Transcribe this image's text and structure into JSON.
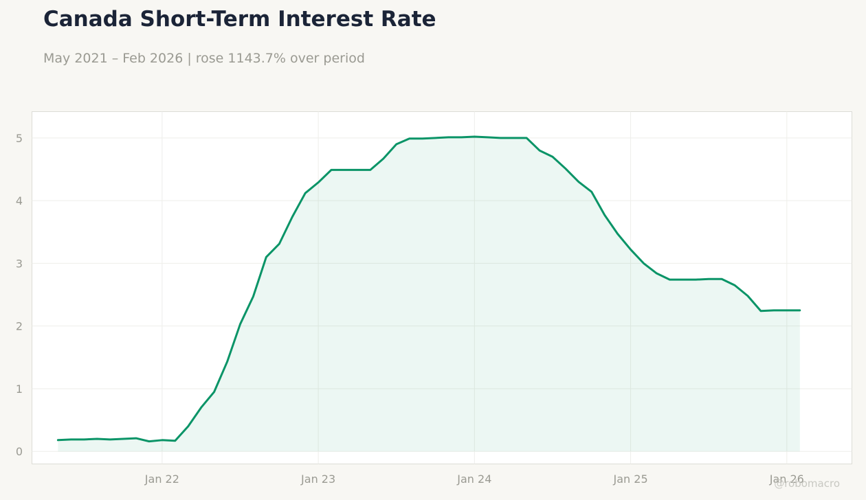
{
  "header": {
    "title": "Canada Short-Term Interest Rate",
    "subtitle": "May 2021 – Feb 2026 | rose 1143.7% over period"
  },
  "watermark": "@robomacro",
  "colors": {
    "line": "#0a9467",
    "fill": "#0a9467",
    "background": "#f8f7f3",
    "plot_background": "#ffffff",
    "grid": "#eeeeea",
    "text_muted": "#9a9a92",
    "title": "#1b2437"
  },
  "chart_data": {
    "type": "area",
    "title": "Canada Short-Term Interest Rate",
    "subtitle": "May 2021 – Feb 2026 | rose 1143.7% over period",
    "xlabel": "",
    "ylabel": "",
    "x_ticks": [
      "Jan 22",
      "Jan 23",
      "Jan 24",
      "Jan 25",
      "Jan 26"
    ],
    "y_ticks": [
      0,
      1,
      2,
      3,
      4,
      5
    ],
    "xlim": [
      "2021-03",
      "2026-06"
    ],
    "ylim": [
      -0.2,
      5.42
    ],
    "grid": true,
    "legend": "none",
    "series": [
      {
        "x": [
          "2021-05",
          "2021-06",
          "2021-07",
          "2021-08",
          "2021-09",
          "2021-10",
          "2021-11",
          "2021-12",
          "2022-01",
          "2022-02",
          "2022-03",
          "2022-04",
          "2022-05",
          "2022-06",
          "2022-07",
          "2022-08",
          "2022-09",
          "2022-10",
          "2022-11",
          "2022-12",
          "2023-01",
          "2023-02",
          "2023-03",
          "2023-04",
          "2023-05",
          "2023-06",
          "2023-07",
          "2023-08",
          "2023-09",
          "2023-10",
          "2023-11",
          "2023-12",
          "2024-01",
          "2024-02",
          "2024-03",
          "2024-04",
          "2024-05",
          "2024-06",
          "2024-07",
          "2024-08",
          "2024-09",
          "2024-10",
          "2024-11",
          "2024-12",
          "2025-01",
          "2025-02",
          "2025-03",
          "2025-04",
          "2025-05",
          "2025-06",
          "2025-07",
          "2025-08",
          "2025-09",
          "2025-10",
          "2025-11",
          "2025-12",
          "2026-01",
          "2026-02"
        ],
        "y": [
          0.18,
          0.19,
          0.19,
          0.2,
          0.19,
          0.2,
          0.21,
          0.16,
          0.18,
          0.17,
          0.4,
          0.7,
          0.95,
          1.43,
          2.03,
          2.47,
          3.1,
          3.31,
          3.74,
          4.12,
          4.29,
          4.49,
          4.49,
          4.49,
          4.49,
          4.67,
          4.9,
          4.99,
          4.99,
          5.0,
          5.01,
          5.01,
          5.02,
          5.01,
          5.0,
          5.0,
          5.0,
          4.8,
          4.7,
          4.51,
          4.3,
          4.14,
          3.77,
          3.47,
          3.22,
          3.0,
          2.84,
          2.74,
          2.74,
          2.74,
          2.75,
          2.75,
          2.65,
          2.48,
          2.24,
          2.25,
          2.25,
          2.25
        ]
      }
    ]
  }
}
